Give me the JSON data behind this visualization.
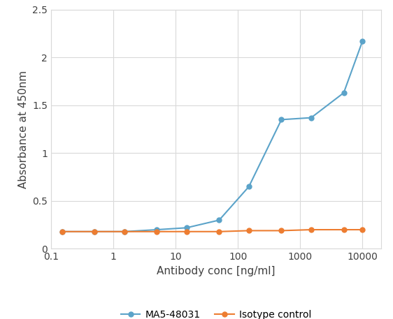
{
  "ma5_x": [
    0.15,
    0.5,
    1.5,
    5,
    15,
    50,
    150,
    500,
    1500,
    5000,
    10000
  ],
  "ma5_y": [
    0.18,
    0.18,
    0.18,
    0.2,
    0.22,
    0.3,
    0.65,
    1.35,
    1.37,
    1.63,
    2.17
  ],
  "iso_x": [
    0.15,
    0.5,
    1.5,
    5,
    15,
    50,
    150,
    500,
    1500,
    5000,
    10000
  ],
  "iso_y": [
    0.18,
    0.18,
    0.18,
    0.18,
    0.18,
    0.18,
    0.19,
    0.19,
    0.2,
    0.2,
    0.2
  ],
  "ma5_color": "#5BA3C9",
  "iso_color": "#ED7D31",
  "ma5_label": "MA5-48031",
  "iso_label": "Isotype control",
  "xlabel": "Antibody conc [ng/ml]",
  "ylabel": "Absorbance at 450nm",
  "ylim": [
    0,
    2.5
  ],
  "xlim": [
    0.1,
    20000
  ],
  "yticks": [
    0,
    0.5,
    1.0,
    1.5,
    2.0,
    2.5
  ],
  "xtick_vals": [
    0.1,
    1,
    10,
    100,
    1000,
    10000
  ],
  "xtick_labels": [
    "0.1",
    "1",
    "10",
    "100",
    "1000",
    "10000"
  ],
  "background_color": "#ffffff",
  "grid_color": "#D9D9D9",
  "spine_color": "#D9D9D9",
  "marker": "o",
  "linewidth": 1.5,
  "markersize": 5,
  "label_fontsize": 11,
  "tick_fontsize": 10,
  "legend_fontsize": 10
}
